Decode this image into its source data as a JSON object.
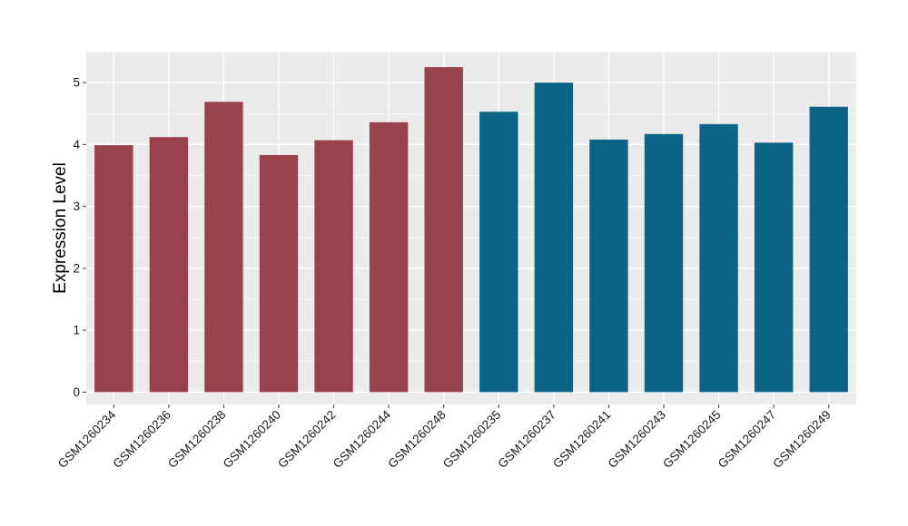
{
  "chart_data": {
    "type": "bar",
    "title": "",
    "xlabel": "",
    "ylabel": "Expression Level",
    "ylim": [
      -0.2,
      5.5
    ],
    "yticks": [
      0,
      1,
      2,
      3,
      4,
      5
    ],
    "grid": true,
    "legend": "none",
    "categories": [
      "GSM1260234",
      "GSM1260236",
      "GSM1260238",
      "GSM1260240",
      "GSM1260242",
      "GSM1260244",
      "GSM1260248",
      "GSM1260235",
      "GSM1260237",
      "GSM1260241",
      "GSM1260243",
      "GSM1260245",
      "GSM1260247",
      "GSM1260249"
    ],
    "values": [
      3.99,
      4.12,
      4.69,
      3.83,
      4.07,
      4.36,
      5.25,
      4.53,
      5.0,
      4.08,
      4.17,
      4.33,
      4.03,
      4.61
    ],
    "groups": [
      0,
      0,
      0,
      0,
      0,
      0,
      0,
      1,
      1,
      1,
      1,
      1,
      1,
      1
    ],
    "group_colors": [
      "#98424E",
      "#0B6386"
    ],
    "panel_background": "#EBEBEB",
    "grid_color": "#FFFFFF"
  }
}
